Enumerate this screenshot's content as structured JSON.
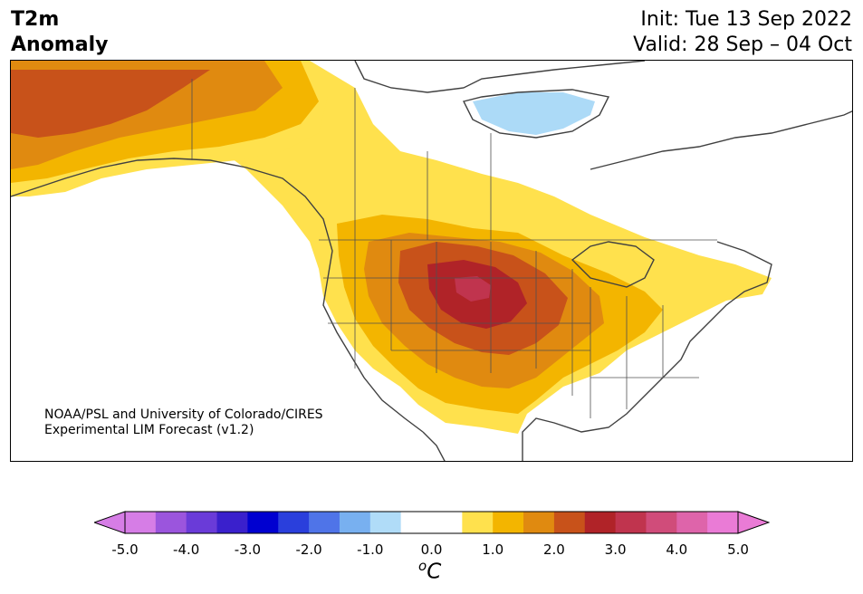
{
  "title": {
    "line1": "T2m",
    "line2": "Anomaly"
  },
  "header_right": {
    "init": "Init: Tue 13 Sep 2022",
    "valid": "Valid: 28 Sep – 04 Oct"
  },
  "credit": {
    "line1": "NOAA/PSL and University of Colorado/CIRES",
    "line2": "Experimental LIM Forecast (v1.2)"
  },
  "colorbar": {
    "unit": "oC",
    "unit_sup": "o",
    "unit_main": "C",
    "tick_labels": [
      "-5.0",
      "-4.0",
      "-3.0",
      "-2.0",
      "-1.0",
      "0.0",
      "1.0",
      "2.0",
      "3.0",
      "4.0",
      "5.0"
    ],
    "colors": [
      "#d67de6",
      "#9b55dd",
      "#6a3bd8",
      "#3a20cc",
      "#0000d0",
      "#2a3fdc",
      "#4f74e8",
      "#78b0f0",
      "#b0dcf8",
      "#ffffff",
      "#ffffff",
      "#ffe14d",
      "#f3b500",
      "#e08a10",
      "#c8521a",
      "#b02328",
      "#c0344e",
      "#d04c7a",
      "#de64aa",
      "#ea7bd6"
    ],
    "under_color": "#d67de6",
    "over_color": "#ea7bd6",
    "range": [
      -5.0,
      5.0
    ],
    "step": 0.5
  },
  "map_colors": {
    "land": "#ffffff",
    "coast": "#404040",
    "c1": "#ffe14d",
    "c15": "#f3b500",
    "c2": "#e08a10",
    "c25": "#c8521a",
    "c3": "#b02328",
    "c35": "#c0344e",
    "cold": "#acdaf7"
  }
}
